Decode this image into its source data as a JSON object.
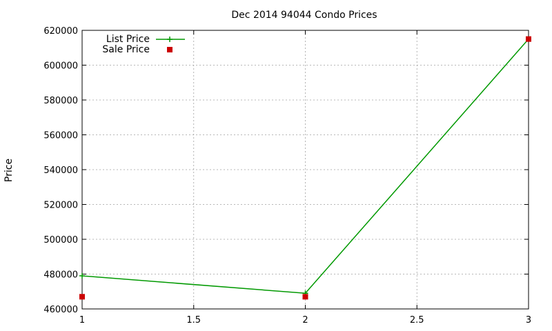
{
  "chart_data": {
    "type": "line",
    "title": "Dec 2014 94044 Condo Prices",
    "xlabel": "",
    "ylabel": "Price",
    "xlim": [
      1,
      3
    ],
    "ylim": [
      460000,
      620000
    ],
    "x_ticks": [
      1,
      1.5,
      2,
      2.5,
      3
    ],
    "y_ticks": [
      460000,
      480000,
      500000,
      520000,
      540000,
      560000,
      580000,
      600000,
      620000
    ],
    "grid": true,
    "legend_position": "top-left",
    "series": [
      {
        "name": "List Price",
        "style": "line-with-plus-markers",
        "color": "#009900",
        "x": [
          1,
          2,
          3
        ],
        "y": [
          479000,
          469000,
          615000
        ]
      },
      {
        "name": "Sale Price",
        "style": "square-points",
        "color": "#cc0000",
        "x": [
          1,
          2,
          3
        ],
        "y": [
          467000,
          467000,
          615000
        ]
      }
    ]
  }
}
